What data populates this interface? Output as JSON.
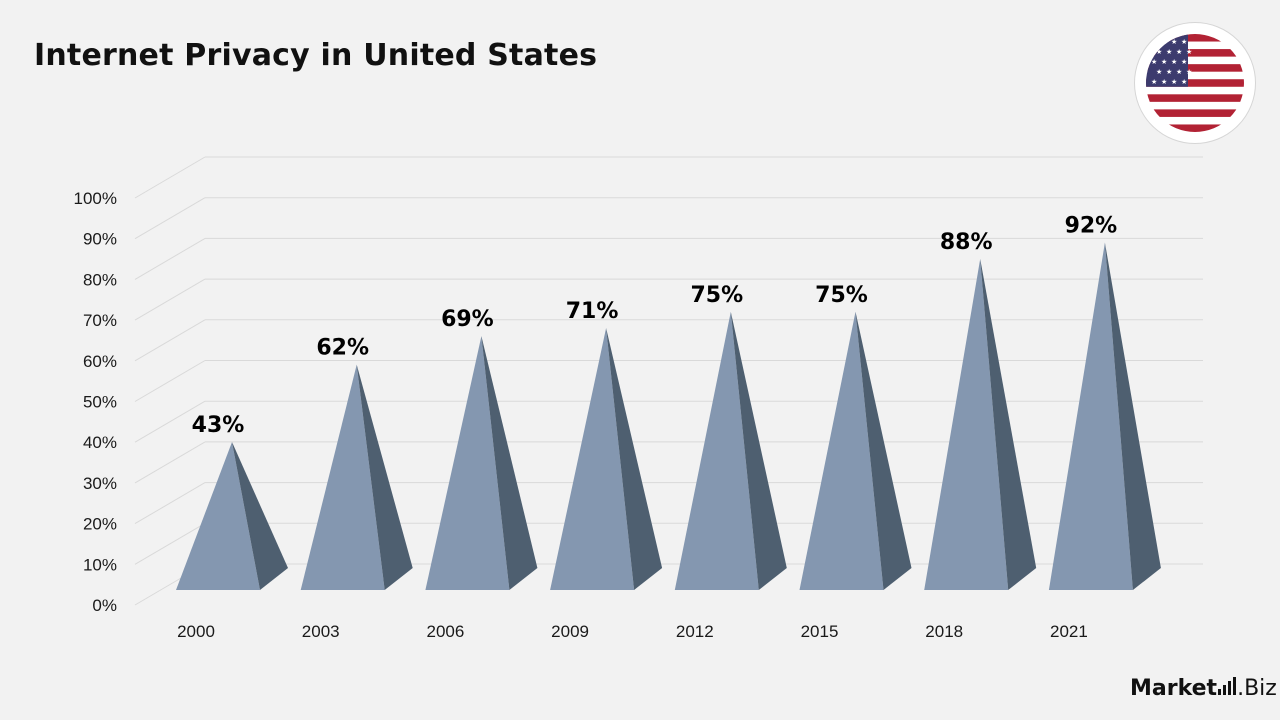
{
  "title": "Internet Privacy in United States",
  "brand": {
    "name_bold": "Market",
    "name_suffix": ".Biz"
  },
  "flag": {
    "icon": "us-flag-icon",
    "colors": {
      "red": "#b22234",
      "blue": "#3c3b6e",
      "white": "#ffffff"
    }
  },
  "colors": {
    "front_face": "#8497b0",
    "side_face": "#4e5f70",
    "grid": "#d9d9d9",
    "label": "#000000",
    "axis_text": "#1a1a1a"
  },
  "chart_data": {
    "type": "bar",
    "style": "3d-pyramid",
    "title": "Internet Privacy in United States",
    "categories": [
      "2000",
      "2003",
      "2006",
      "2009",
      "2012",
      "2015",
      "2018",
      "2021"
    ],
    "values": [
      43,
      62,
      69,
      71,
      75,
      75,
      88,
      92
    ],
    "data_labels": [
      "43%",
      "62%",
      "69%",
      "71%",
      "75%",
      "75%",
      "88%",
      "92%"
    ],
    "ylim": [
      0,
      100
    ],
    "yticks": [
      0,
      10,
      20,
      30,
      40,
      50,
      60,
      70,
      80,
      90,
      100
    ],
    "ytick_labels": [
      "0%",
      "10%",
      "20%",
      "30%",
      "40%",
      "50%",
      "60%",
      "70%",
      "80%",
      "90%",
      "100%"
    ],
    "xlabel": "",
    "ylabel": "",
    "grid": true,
    "legend": "none"
  }
}
